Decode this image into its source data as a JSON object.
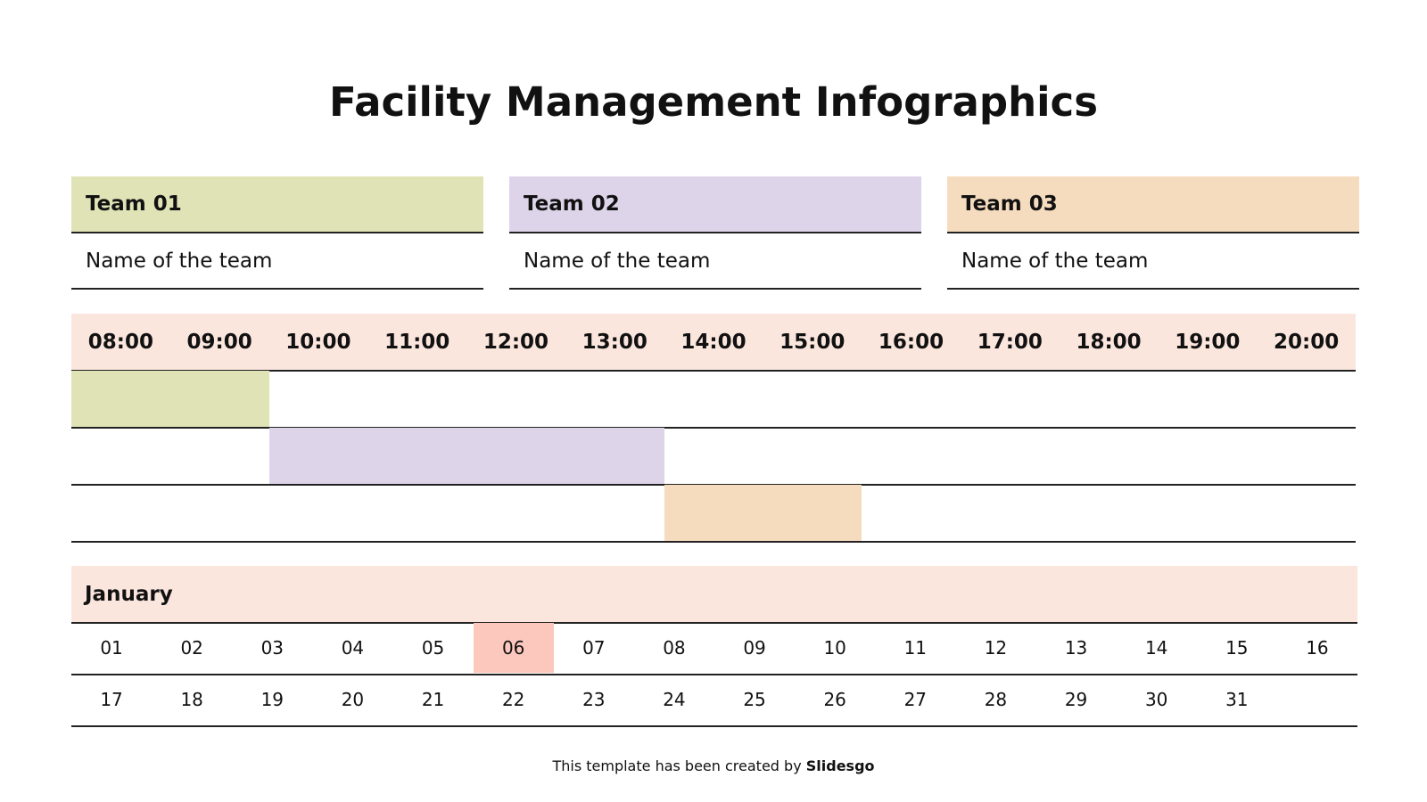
{
  "title": "Facility Management Infographics",
  "teams": [
    {
      "label": "Team 01",
      "name": "Name of the team",
      "color": "#dfe3b6"
    },
    {
      "label": "Team 02",
      "name": "Name of the team",
      "color": "#ddd4ea"
    },
    {
      "label": "Team 03",
      "name": "Name of the team",
      "color": "#f6dcbe"
    }
  ],
  "schedule": {
    "hours": [
      "08:00",
      "09:00",
      "10:00",
      "11:00",
      "12:00",
      "13:00",
      "14:00",
      "15:00",
      "16:00",
      "17:00",
      "18:00",
      "19:00",
      "20:00"
    ],
    "header_color": "#fbe6de",
    "bars": [
      {
        "start": "08:00",
        "end": "10:00"
      },
      {
        "start": "10:00",
        "end": "14:00"
      },
      {
        "start": "14:00",
        "end": "16:00"
      }
    ]
  },
  "calendar": {
    "month": "January",
    "days": [
      "01",
      "02",
      "03",
      "04",
      "05",
      "06",
      "07",
      "08",
      "09",
      "10",
      "11",
      "12",
      "13",
      "14",
      "15",
      "16",
      "17",
      "18",
      "19",
      "20",
      "21",
      "22",
      "23",
      "24",
      "25",
      "26",
      "27",
      "28",
      "29",
      "30",
      "31"
    ],
    "highlight": "06",
    "highlight_color": "#fcc7bd"
  },
  "footer": {
    "text": "This template has been created by",
    "brand": "Slidesgo"
  }
}
